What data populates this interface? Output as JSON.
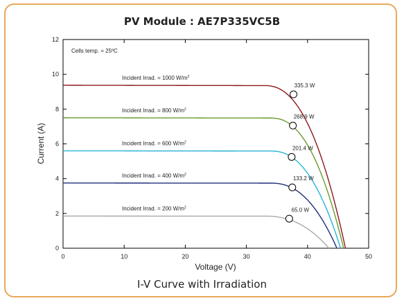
{
  "chart_data": {
    "type": "line",
    "title": "PV Module : AE7P335VC5B",
    "subtitle": "I-V Curve with Irradiation",
    "xlabel": "Voltage (V)",
    "ylabel": "Current (A)",
    "xlim": [
      0,
      50
    ],
    "ylim": [
      0,
      12
    ],
    "xticks": [
      0,
      10,
      20,
      30,
      40,
      50
    ],
    "yticks": [
      0,
      2,
      4,
      6,
      8,
      10,
      12
    ],
    "note": "Cells temp. = 25ºC",
    "grid": false,
    "series": [
      {
        "name": "Incident Irrad. = 1000 W/m²",
        "label": "Incident Irrad. = 1000 W/m",
        "color": "#8b1a1a",
        "isc": 9.37,
        "voc": 46.2,
        "knee": 33,
        "mpp": {
          "v": 37.7,
          "i": 8.85,
          "label": "335.3 W"
        }
      },
      {
        "name": "Incident Irrad. = 800 W/m²",
        "label": "Incident Irrad. = 800 W/m",
        "color": "#6b9a2a",
        "isc": 7.5,
        "voc": 45.9,
        "knee": 34,
        "mpp": {
          "v": 37.6,
          "i": 7.05,
          "label": "268.9 W"
        }
      },
      {
        "name": "Incident Irrad. = 600 W/m²",
        "label": "Incident Irrad. = 600 W/m",
        "color": "#2ab3d6",
        "isc": 5.6,
        "voc": 45.4,
        "knee": 34,
        "mpp": {
          "v": 37.4,
          "i": 5.25,
          "label": "201.4 W"
        }
      },
      {
        "name": "Incident Irrad. = 400 W/m²",
        "label": "Incident Irrad. = 400 W/m",
        "color": "#1e2d7a",
        "isc": 3.75,
        "voc": 44.8,
        "knee": 34,
        "mpp": {
          "v": 37.5,
          "i": 3.5,
          "label": "133.2 W"
        }
      },
      {
        "name": "Incident Irrad. = 200 W/m²",
        "label": "Incident Irrad. = 200 W/m",
        "color": "#a8a8a8",
        "isc": 1.85,
        "voc": 43.5,
        "knee": 33,
        "mpp": {
          "v": 37.0,
          "i": 1.7,
          "label": "65.0 W"
        }
      }
    ]
  }
}
